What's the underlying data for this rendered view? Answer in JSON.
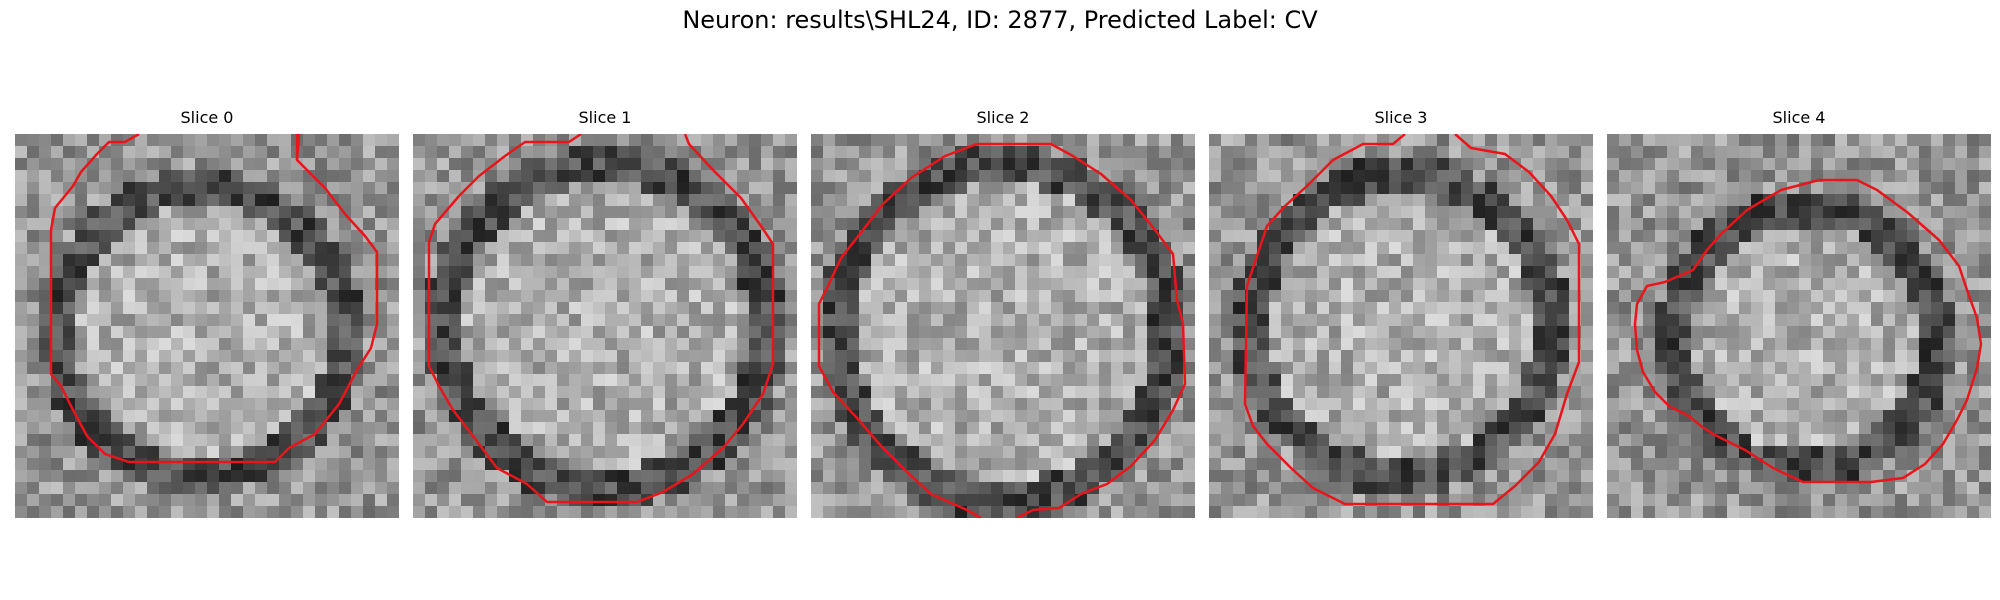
{
  "figure": {
    "title": "Neuron: results\\SHL24, ID: 2877, Predicted Label: CV"
  },
  "panels": [
    {
      "title": "Slice 0"
    },
    {
      "title": "Slice 1"
    },
    {
      "title": "Slice 2"
    },
    {
      "title": "Slice 3"
    },
    {
      "title": "Slice 4"
    }
  ],
  "colors": {
    "contour": "#e8161b"
  }
}
